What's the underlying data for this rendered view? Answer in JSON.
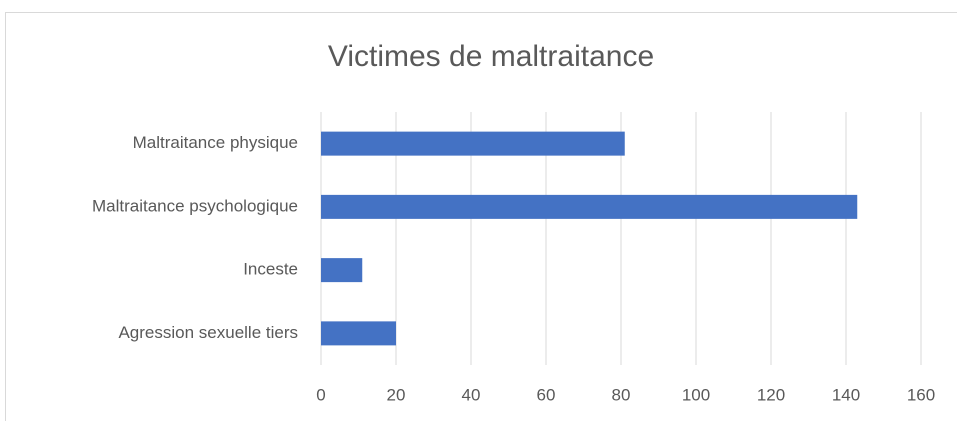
{
  "chart_data": {
    "type": "bar",
    "orientation": "horizontal",
    "title": "Victimes de maltraitance",
    "categories": [
      "Maltraitance physique",
      "Maltraitance psychologique",
      "Inceste",
      "Agression sexuelle tiers"
    ],
    "values": [
      81,
      143,
      11,
      20
    ],
    "color": "#4472c4",
    "xlim": [
      0,
      160
    ],
    "xticks": [
      0,
      20,
      40,
      60,
      80,
      100,
      120,
      140,
      160
    ],
    "grid": true
  }
}
